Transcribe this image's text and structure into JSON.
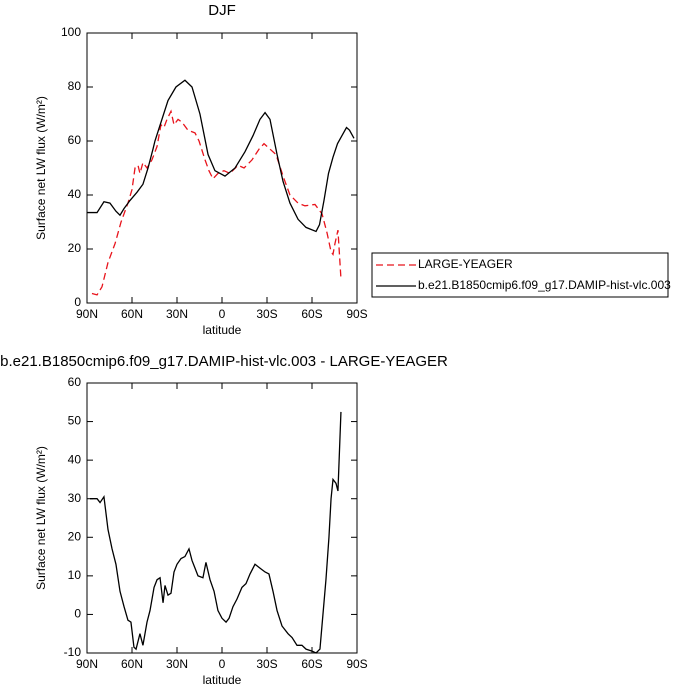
{
  "chart_data": [
    {
      "type": "line",
      "title": "DJF",
      "xlabel": "latitude",
      "ylabel": "Surface net LW flux (W/m²)",
      "xlim": [
        90,
        -90
      ],
      "xticks": [
        {
          "value": 90,
          "label": "90N"
        },
        {
          "value": 60,
          "label": "60N"
        },
        {
          "value": 30,
          "label": "30N"
        },
        0,
        {
          "value": -30,
          "label": "30S"
        },
        {
          "value": -60,
          "label": "60S"
        },
        {
          "value": -90,
          "label": "90S"
        }
      ],
      "ylim": [
        0,
        100
      ],
      "yticks": [
        0,
        20,
        40,
        60,
        80,
        100
      ],
      "legend": "right",
      "series": [
        {
          "name": "LARGE-YEAGER",
          "color": "#e8141c",
          "style": "dashed",
          "x": [
            86.7,
            83.3,
            80,
            76,
            71.3,
            67.3,
            62.7,
            60,
            58,
            56,
            54.7,
            52.7,
            50,
            46.7,
            43.3,
            40.7,
            38.7,
            36.7,
            34,
            32,
            29.3,
            26.7,
            22.7,
            18,
            15.3,
            11.3,
            8.7,
            6,
            2.7,
            -1.3,
            -5.3,
            -10.7,
            -14.7,
            -20,
            -24.7,
            -28,
            -32,
            -36,
            -40.7,
            -45.3,
            -50.7,
            -55.3,
            -62,
            -66.7,
            -70,
            -72.7,
            -74,
            -75.3,
            -77.3,
            -79.3
          ],
          "values": [
            3.5,
            3,
            6,
            15,
            22,
            30,
            37,
            42,
            50,
            51,
            48,
            52,
            50,
            53,
            58,
            66,
            65,
            68,
            71,
            66,
            68,
            67,
            64,
            63,
            60,
            53,
            49,
            46,
            48,
            49,
            48,
            51,
            50,
            53,
            57,
            59,
            57,
            55,
            47,
            40,
            37,
            36,
            36.5,
            33,
            26,
            19,
            18,
            22,
            27,
            9
          ]
        },
        {
          "name": "b.e21.B1850cmip6.f09_g17.DAMIP-hist-vlc.003",
          "color": "#000000",
          "style": "solid",
          "x": [
            90,
            83.3,
            78.7,
            74.7,
            70.7,
            68,
            65.3,
            61.3,
            56.7,
            52.7,
            49.3,
            46,
            44.7,
            36,
            30.7,
            24.7,
            20,
            14.7,
            9.3,
            4.7,
            -2,
            -8.7,
            -15.3,
            -20.7,
            -25.3,
            -28.7,
            -32,
            -36.7,
            -40.7,
            -45.3,
            -50.7,
            -56,
            -62.7,
            -65,
            -68,
            -71,
            -74,
            -77,
            -80,
            -83,
            -85,
            -88
          ],
          "values": [
            33.5,
            33.5,
            37.5,
            37,
            34,
            32.5,
            35,
            38,
            41,
            44,
            50,
            57,
            60,
            75,
            80,
            82.5,
            80,
            70,
            55,
            49,
            47,
            50,
            56,
            62,
            68,
            70.5,
            68,
            55,
            45,
            37,
            31,
            28,
            26.5,
            29,
            38,
            48,
            54,
            59,
            62,
            65,
            64,
            61
          ]
        }
      ]
    },
    {
      "type": "line",
      "title": "b.e21.B1850cmip6.f09_g17.DAMIP-hist-vlc.003 - LARGE-YEAGER",
      "xlabel": "latitude",
      "ylabel": "Surface net LW flux (W/m²)",
      "xlim": [
        90,
        -90
      ],
      "xticks": [
        {
          "value": 90,
          "label": "90N"
        },
        {
          "value": 60,
          "label": "60N"
        },
        {
          "value": 30,
          "label": "30N"
        },
        0,
        {
          "value": -30,
          "label": "30S"
        },
        {
          "value": -60,
          "label": "60S"
        },
        {
          "value": -90,
          "label": "90S"
        }
      ],
      "ylim": [
        -10,
        60
      ],
      "yticks": [
        -10,
        0,
        10,
        20,
        30,
        40,
        50,
        60
      ],
      "series": [
        {
          "color": "#000000",
          "style": "solid",
          "x": [
            88,
            83.3,
            81.3,
            78.7,
            76,
            73.3,
            70.7,
            68,
            65.3,
            62.7,
            60.7,
            58.7,
            57.3,
            54.7,
            52.7,
            50,
            48,
            45.3,
            43.3,
            41.3,
            39.3,
            38,
            36,
            34,
            32,
            30,
            27.3,
            24.7,
            22,
            20,
            18,
            16,
            12.7,
            10.7,
            8,
            5.3,
            2.7,
            0,
            -2.7,
            -4.7,
            -7.3,
            -10,
            -13.3,
            -16,
            -18.7,
            -22,
            -25.3,
            -28.7,
            -31.3,
            -34,
            -36.7,
            -40,
            -44,
            -46.7,
            -50,
            -53.3,
            -56,
            -60,
            -62.7,
            -65.3,
            -67.3,
            -69.3,
            -71.3,
            -72.7,
            -74,
            -76,
            -77.3,
            -79.3
          ],
          "values": [
            30,
            30,
            29,
            30.5,
            22,
            17,
            13,
            6,
            2,
            -1.5,
            -2,
            -8.5,
            -9,
            -5,
            -8,
            -2,
            1,
            7,
            9,
            9.5,
            3,
            7.5,
            5,
            5.5,
            11,
            13,
            14.5,
            15,
            17,
            14,
            12,
            10,
            9.5,
            13.5,
            9,
            6,
            1,
            -1,
            -2,
            -1,
            2,
            4,
            7,
            8,
            10.5,
            13,
            12,
            11,
            10.5,
            6,
            1,
            -3,
            -5,
            -6,
            -8,
            -8,
            -9,
            -9.5,
            -10,
            -9,
            0,
            9,
            20,
            30,
            35,
            34,
            32,
            52.5
          ]
        }
      ]
    }
  ]
}
